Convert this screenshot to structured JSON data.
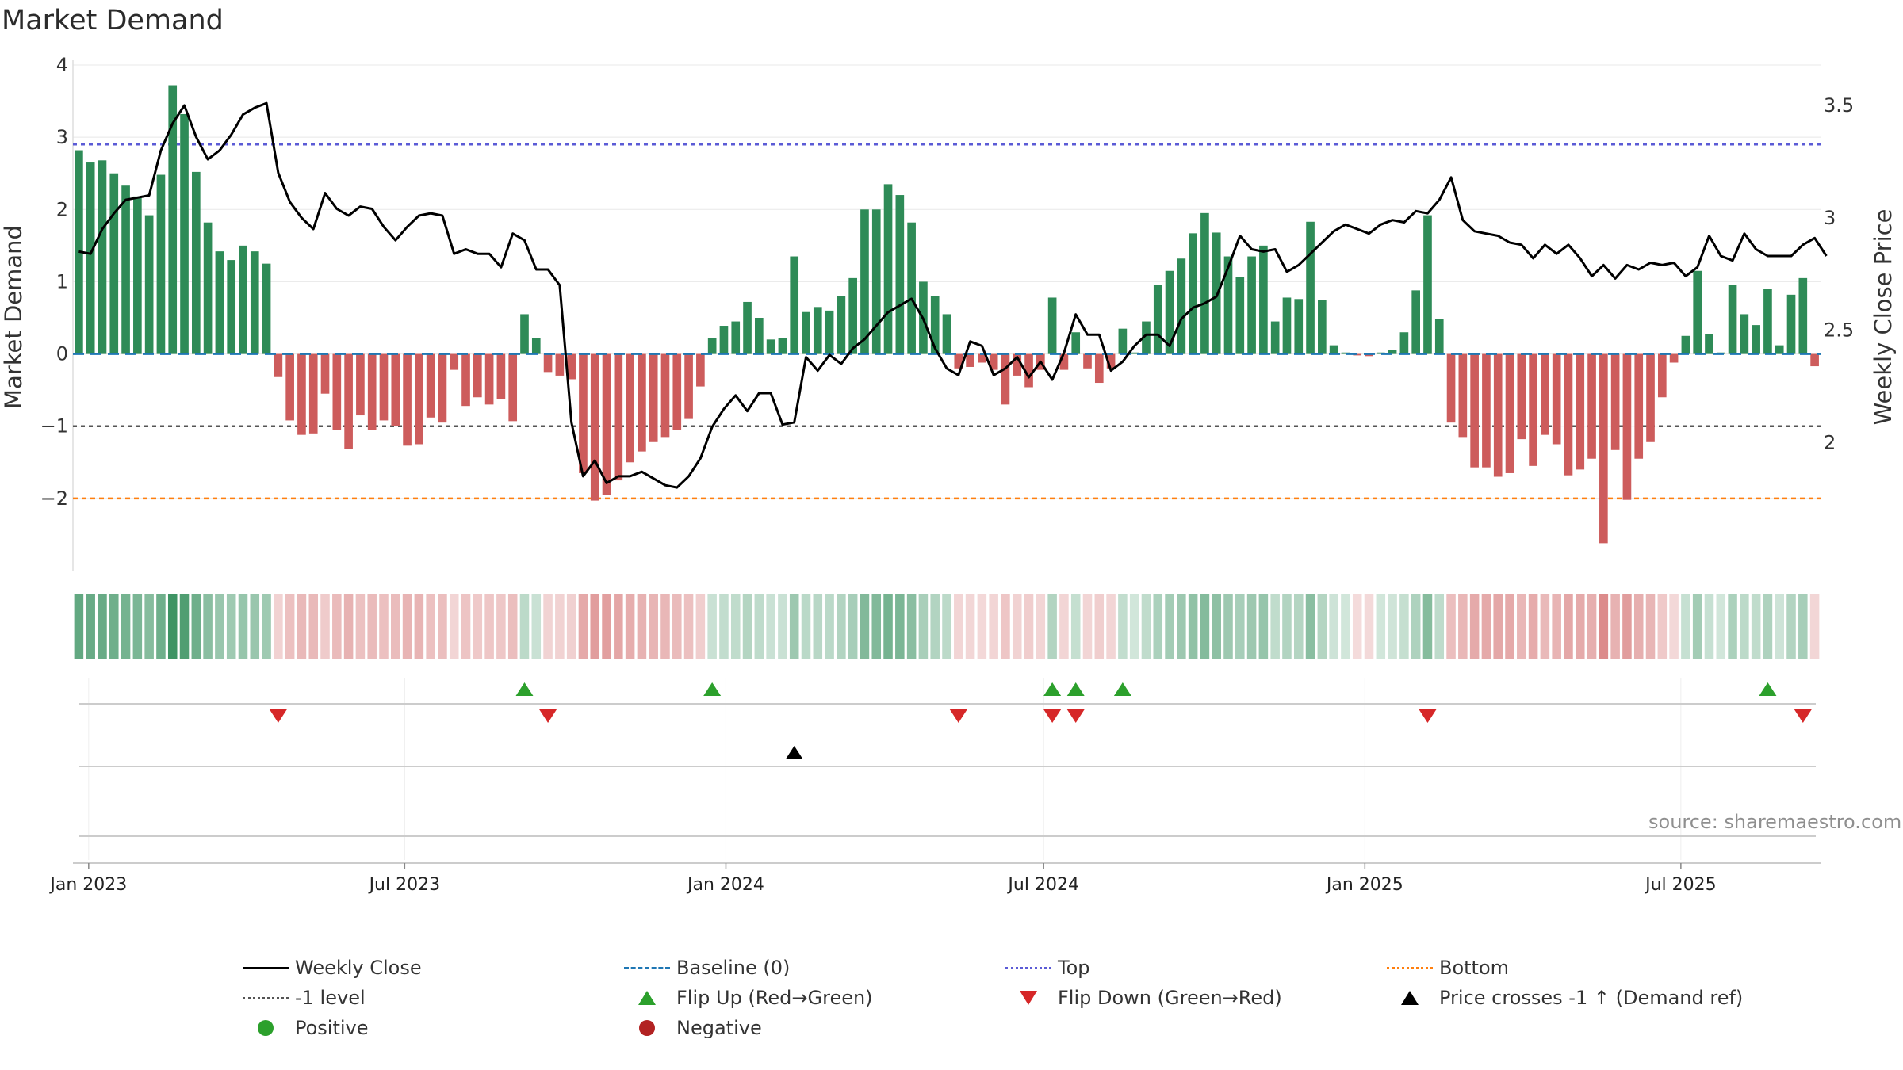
{
  "title": "Market Demand",
  "source": "source: sharemaestro.com",
  "colors": {
    "positive": "#2e8b57",
    "negative": "#cd5c5c",
    "weekly_close": "#000000",
    "baseline": "#1f77b4",
    "top": "#5b5bd6",
    "bottom": "#ff7f0e",
    "minus1": "#555555",
    "flip_up": "#2ca02c",
    "flip_down": "#d62728",
    "price_cross": "#000000",
    "grid": "#e8e8e8"
  },
  "chart_data": {
    "type": "bar",
    "title": "Market Demand",
    "ylabel": "Market Demand",
    "y2label": "Weekly Close Price",
    "ylim": [
      -3.0,
      4.0
    ],
    "y2lim": [
      1.43,
      3.68
    ],
    "yticks": [
      {
        "v": -2,
        "label": "−2"
      },
      {
        "v": -1,
        "label": "−1"
      },
      {
        "v": 0,
        "label": "0"
      },
      {
        "v": 1,
        "label": "1"
      },
      {
        "v": 2,
        "label": "2"
      },
      {
        "v": 3,
        "label": "3"
      },
      {
        "v": 4,
        "label": "4"
      }
    ],
    "y2ticks": [
      {
        "v": 2,
        "label": "2"
      },
      {
        "v": 2.5,
        "label": "2.5"
      },
      {
        "v": 3,
        "label": "3"
      },
      {
        "v": 3.5,
        "label": "3.5"
      }
    ],
    "xticks": [
      {
        "date": "2023-01-01",
        "label": "Jan 2023"
      },
      {
        "date": "2023-07-01",
        "label": "Jul 2023"
      },
      {
        "date": "2024-01-01",
        "label": "Jan 2024"
      },
      {
        "date": "2024-07-01",
        "label": "Jul 2024"
      },
      {
        "date": "2025-01-01",
        "label": "Jan 2025"
      },
      {
        "date": "2025-07-01",
        "label": "Jul 2025"
      }
    ],
    "start_date": "2022-12-23",
    "end_date": "2025-09-19",
    "reference_lines": [
      {
        "name": "Top",
        "value": 2.9
      },
      {
        "name": "-1 level",
        "value": -1
      },
      {
        "name": "Bottom",
        "value": -2
      },
      {
        "name": "Baseline (0)",
        "value": 0
      }
    ],
    "demand": [
      2.82,
      2.65,
      2.68,
      2.5,
      2.33,
      2.18,
      1.92,
      2.48,
      3.72,
      3.32,
      2.52,
      1.82,
      1.42,
      1.3,
      1.5,
      1.42,
      1.25,
      -0.32,
      -0.92,
      -1.12,
      -1.1,
      -0.55,
      -1.05,
      -1.32,
      -0.85,
      -1.05,
      -0.92,
      -1.0,
      -1.27,
      -1.25,
      -0.88,
      -0.95,
      -0.22,
      -0.72,
      -0.6,
      -0.7,
      -0.62,
      -0.93,
      0.55,
      0.22,
      -0.25,
      -0.3,
      -0.35,
      -1.65,
      -2.03,
      -1.95,
      -1.75,
      -1.5,
      -1.35,
      -1.22,
      -1.15,
      -1.05,
      -0.9,
      -0.45,
      0.22,
      0.39,
      0.45,
      0.72,
      0.5,
      0.2,
      0.22,
      1.35,
      0.58,
      0.65,
      0.6,
      0.8,
      1.05,
      2.0,
      2.0,
      2.35,
      2.2,
      1.82,
      1.0,
      0.8,
      0.55,
      -0.2,
      -0.18,
      -0.12,
      -0.22,
      -0.7,
      -0.3,
      -0.46,
      -0.22,
      0.78,
      -0.22,
      0.3,
      -0.2,
      -0.4,
      -0.2,
      0.35,
      0.02,
      0.45,
      0.95,
      1.15,
      1.32,
      1.67,
      1.95,
      1.68,
      1.35,
      1.07,
      1.35,
      1.5,
      0.45,
      0.78,
      0.76,
      1.83,
      0.75,
      0.12,
      0.02,
      -0.02,
      -0.03,
      0.02,
      0.06,
      0.3,
      0.88,
      1.92,
      0.48,
      -0.95,
      -1.15,
      -1.57,
      -1.57,
      -1.7,
      -1.65,
      -1.18,
      -1.55,
      -1.12,
      -1.25,
      -1.68,
      -1.6,
      -1.45,
      -2.62,
      -1.33,
      -2.02,
      -1.45,
      -1.22,
      -0.6,
      -0.12,
      0.25,
      1.15,
      0.28,
      0.02,
      0.95,
      0.55,
      0.4,
      0.9,
      0.12,
      0.82,
      1.05,
      -0.17
    ],
    "weekly_close": [
      2.85,
      2.84,
      2.95,
      3.02,
      3.08,
      3.09,
      3.1,
      3.3,
      3.42,
      3.5,
      3.36,
      3.26,
      3.3,
      3.37,
      3.46,
      3.49,
      3.51,
      3.2,
      3.07,
      3.0,
      2.95,
      3.11,
      3.04,
      3.01,
      3.05,
      3.04,
      2.96,
      2.9,
      2.96,
      3.01,
      3.02,
      3.01,
      2.84,
      2.86,
      2.84,
      2.84,
      2.78,
      2.93,
      2.9,
      2.77,
      2.77,
      2.7,
      2.09,
      1.85,
      1.92,
      1.82,
      1.85,
      1.85,
      1.87,
      1.84,
      1.81,
      1.8,
      1.85,
      1.93,
      2.07,
      2.15,
      2.21,
      2.14,
      2.22,
      2.22,
      2.08,
      2.09,
      2.38,
      2.32,
      2.39,
      2.35,
      2.42,
      2.46,
      2.52,
      2.58,
      2.61,
      2.64,
      2.55,
      2.42,
      2.33,
      2.3,
      2.45,
      2.43,
      2.3,
      2.33,
      2.38,
      2.29,
      2.36,
      2.28,
      2.4,
      2.57,
      2.48,
      2.48,
      2.32,
      2.36,
      2.43,
      2.48,
      2.48,
      2.43,
      2.55,
      2.6,
      2.62,
      2.65,
      2.78,
      2.92,
      2.86,
      2.85,
      2.86,
      2.76,
      2.79,
      2.84,
      2.89,
      2.94,
      2.97,
      2.95,
      2.93,
      2.97,
      2.99,
      2.98,
      3.03,
      3.02,
      3.08,
      3.18,
      2.99,
      2.94,
      2.93,
      2.92,
      2.89,
      2.88,
      2.82,
      2.88,
      2.84,
      2.88,
      2.82,
      2.74,
      2.79,
      2.73,
      2.79,
      2.77,
      2.8,
      2.79,
      2.8,
      2.74,
      2.78,
      2.92,
      2.83,
      2.81,
      2.93,
      2.86,
      2.83,
      2.83,
      2.83,
      2.88,
      2.91,
      2.83
    ]
  },
  "markers": {
    "flip_up_weeks": [
      38,
      54,
      83,
      85,
      89,
      144
    ],
    "flip_down_weeks": [
      17,
      40,
      75,
      83,
      85,
      115,
      147
    ],
    "price_cross_weeks": [
      61
    ]
  },
  "legend": {
    "items": [
      {
        "label": "Weekly Close",
        "symbol": "solid-line",
        "color": "#000000"
      },
      {
        "label": "Baseline (0)",
        "symbol": "dashed-line",
        "color": "#1f77b4"
      },
      {
        "label": "Top",
        "symbol": "dotted-line",
        "color": "#5b5bd6"
      },
      {
        "label": "Bottom",
        "symbol": "dotted-line",
        "color": "#ff7f0e"
      },
      {
        "label": "-1 level",
        "symbol": "dotted-line",
        "color": "#555555"
      },
      {
        "label": "Flip Up (Red→Green)",
        "symbol": "triangle-up",
        "color": "#2ca02c"
      },
      {
        "label": "Flip Down (Green→Red)",
        "symbol": "triangle-down",
        "color": "#d62728"
      },
      {
        "label": "Price crosses -1 ↑ (Demand ref)",
        "symbol": "triangle-up",
        "color": "#000000"
      },
      {
        "label": "Positive",
        "symbol": "dot",
        "color": "#2ca02c"
      },
      {
        "label": "Negative",
        "symbol": "dot",
        "color": "#b22222"
      }
    ]
  }
}
